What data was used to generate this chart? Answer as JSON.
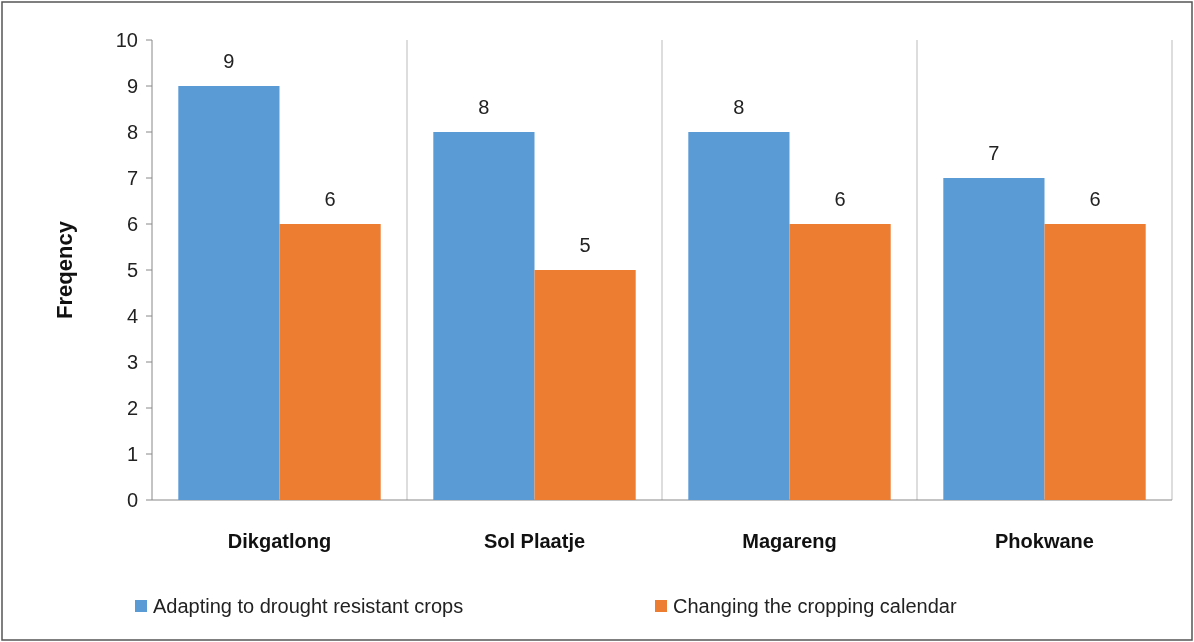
{
  "chart_data": {
    "type": "bar",
    "ylabel": "Freqency",
    "categories": [
      "Dikgatlong",
      "Sol Plaatje",
      "Magareng",
      "Phokwane"
    ],
    "series": [
      {
        "name": "Adapting to drought resistant crops",
        "color": "#5b9bd5",
        "values": [
          9,
          8,
          8,
          7
        ]
      },
      {
        "name": "Changing the cropping calendar",
        "color": "#ed7d31",
        "values": [
          6,
          5,
          6,
          6
        ]
      }
    ],
    "ylim": [
      0,
      10
    ],
    "yticks": [
      0,
      1,
      2,
      3,
      4,
      5,
      6,
      7,
      8,
      9,
      10
    ],
    "grid": "x",
    "legend": "bottom",
    "data_labels": true
  }
}
